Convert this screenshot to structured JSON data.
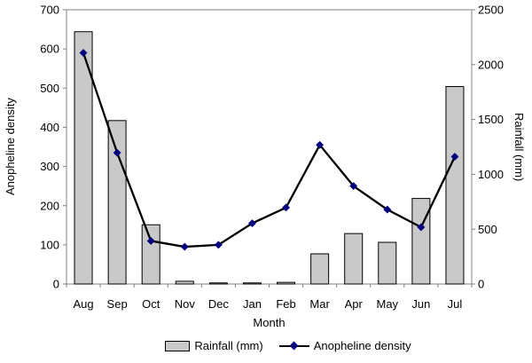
{
  "chart_data": {
    "type": "combo",
    "categories": [
      "Aug",
      "Sep",
      "Oct",
      "Nov",
      "Dec",
      "Jan",
      "Feb",
      "Mar",
      "Apr",
      "May",
      "Jun",
      "Jul"
    ],
    "series": [
      {
        "name": "Rainfall (mm)",
        "type": "bar",
        "axis": "right",
        "values": [
          2300,
          1490,
          540,
          25,
          10,
          10,
          15,
          275,
          460,
          380,
          780,
          1800
        ],
        "fill": "#c9c9c9",
        "stroke": "#000000"
      },
      {
        "name": "Anopheline density",
        "type": "line",
        "axis": "left",
        "values": [
          590,
          335,
          110,
          95,
          100,
          155,
          195,
          355,
          250,
          190,
          145,
          325
        ],
        "line_color": "#000000",
        "marker": "diamond",
        "marker_color": "#000080"
      }
    ],
    "xlabel": "Month",
    "left_ylabel": "Anopheline density",
    "right_ylabel": "Rainfall (mm)",
    "left_ylim": [
      0,
      700
    ],
    "left_tick_step": 100,
    "left_ticks": [
      0,
      100,
      200,
      300,
      400,
      500,
      600,
      700
    ],
    "right_ylim": [
      0,
      2500
    ],
    "right_tick_step": 500,
    "right_ticks": [
      0,
      500,
      1000,
      1500,
      2000,
      2500
    ],
    "gridlines": false,
    "legend_position": "bottom",
    "colors": {
      "axis_line": "#808080",
      "text": "#000000",
      "background": "#ffffff",
      "bar_fill": "#c9c9c9",
      "bar_stroke": "#000000",
      "line": "#000000",
      "marker": "#000080"
    }
  }
}
